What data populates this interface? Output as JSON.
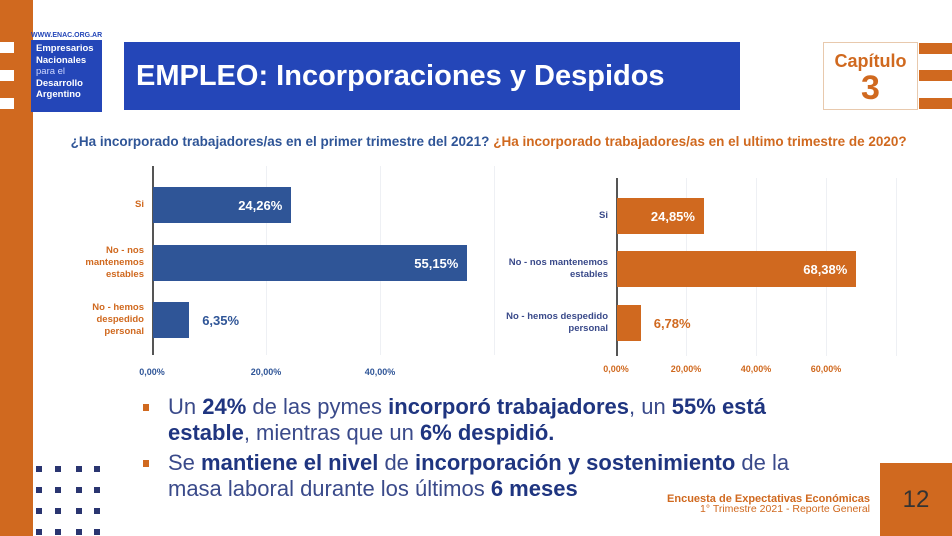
{
  "logo": {
    "url": "WWW.ENAC.ORG.AR",
    "line1": "Empresarios",
    "line2": "Nacionales",
    "line3": "para el",
    "line4": "Desarrollo",
    "line5": "Argentino"
  },
  "header": {
    "title": "EMPLEO: Incorporaciones y Despidos",
    "chapter_label": "Capítulo",
    "chapter_number": "3"
  },
  "colors": {
    "blue": "#2f5597",
    "orange": "#d0691f",
    "title_blue": "#2446b8"
  },
  "chart_data": [
    {
      "type": "bar",
      "orientation": "horizontal",
      "title": "¿Ha incorporado trabajadores/as en el primer trimestre del 2021?",
      "categories": [
        "Si",
        "No - nos mantenemos estables",
        "No - hemos despedido personal"
      ],
      "category_lines": [
        [
          "Si"
        ],
        [
          "No - nos",
          "mantenemos",
          "estables"
        ],
        [
          "No - hemos",
          "despedido",
          "personal"
        ]
      ],
      "values": [
        24.26,
        55.15,
        6.35
      ],
      "labels": [
        "24,26%",
        "55,15%",
        "6,35%"
      ],
      "ticks": [
        "0,00%",
        "20,00%",
        "40,00%"
      ],
      "xlim": [
        0,
        60
      ],
      "grid": true,
      "color": "#2f5597"
    },
    {
      "type": "bar",
      "orientation": "horizontal",
      "title": "¿Ha incorporado trabajadores/as en el ultimo trimestre de 2020?",
      "categories": [
        "Si",
        "No - nos mantenemos estables",
        "No - hemos despedido personal"
      ],
      "category_lines": [
        [
          "Si"
        ],
        [
          "No - nos mantenemos",
          "estables"
        ],
        [
          "No - hemos despedido",
          "personal"
        ]
      ],
      "values": [
        24.85,
        68.38,
        6.78
      ],
      "labels": [
        "24,85%",
        "68,38%",
        "6,78%"
      ],
      "ticks": [
        "0,00%",
        "20,00%",
        "40,00%",
        "60,00%"
      ],
      "xlim": [
        0,
        80
      ],
      "grid": true,
      "color": "#d0691f"
    }
  ],
  "bullets": [
    [
      {
        "t": "Un "
      },
      {
        "t": "24%",
        "b": 1
      },
      {
        "t": " de las pymes "
      },
      {
        "t": "incorporó trabajadores",
        "b": 1
      },
      {
        "t": ", un "
      },
      {
        "t": "55% está estable",
        "b": 1
      },
      {
        "t": ", mientras que un "
      },
      {
        "t": "6% despidió.",
        "b": 1
      }
    ],
    [
      {
        "t": "Se "
      },
      {
        "t": "mantiene el nivel",
        "b": 1
      },
      {
        "t": " de "
      },
      {
        "t": "incorporación y sostenimiento",
        "b": 1
      },
      {
        "t": " de la masa laboral durante los últimos "
      },
      {
        "t": "6 meses",
        "b": 1
      }
    ]
  ],
  "footer": {
    "line1": "Encuesta de Expectativas Económicas",
    "line2": "1° Trimestre 2021 - Reporte General"
  },
  "page_number": "12"
}
